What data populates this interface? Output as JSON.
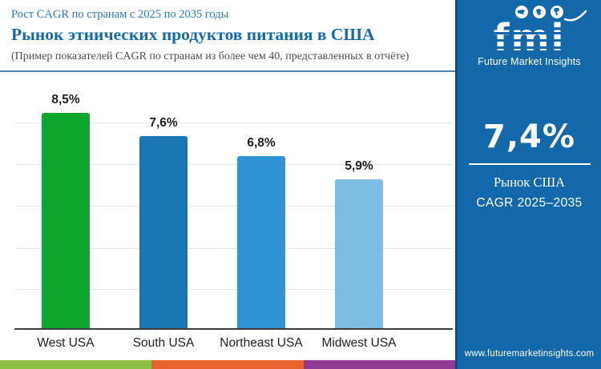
{
  "header": {
    "subtitle_top": "Рост CAGR по странам с 2025 по 2035 годы",
    "title": "Рынок этнических продуктов питания в США",
    "note": "(Пример показателей CAGR по странам из более чем 40, представленных в отчёте)"
  },
  "chart_data": {
    "type": "bar",
    "categories": [
      "West USA",
      "South USA",
      "Northeast USA",
      "Midwest USA"
    ],
    "values": [
      8.5,
      7.6,
      6.8,
      5.9
    ],
    "value_labels": [
      "8,5%",
      "7,6%",
      "6,8%",
      "5,9%"
    ],
    "bar_colors": [
      "#0aa72c",
      "#1b76b4",
      "#2f93d5",
      "#7dbce3"
    ],
    "title": "Рынок этнических продуктов питания в США (CAGR 2025–2035)",
    "xlabel": "",
    "ylabel": "",
    "ylim": [
      0,
      9.5
    ],
    "grid": true,
    "legend": false
  },
  "side_panel": {
    "bg_color": "#1268a9",
    "logo": {
      "text": "fmi",
      "tagline": "Future Market Insights",
      "icons": [
        "usa-map-icon",
        "europe-map-icon",
        "americas-map-icon"
      ]
    },
    "stat_value": "7,4%",
    "stat_label1": "Рынок США",
    "stat_label2": "CAGR 2025–2035",
    "website": "www.futuremarketinsights.com"
  },
  "footer_strip_colors": [
    "#8cc044",
    "#e8632c",
    "#8f3a94"
  ]
}
